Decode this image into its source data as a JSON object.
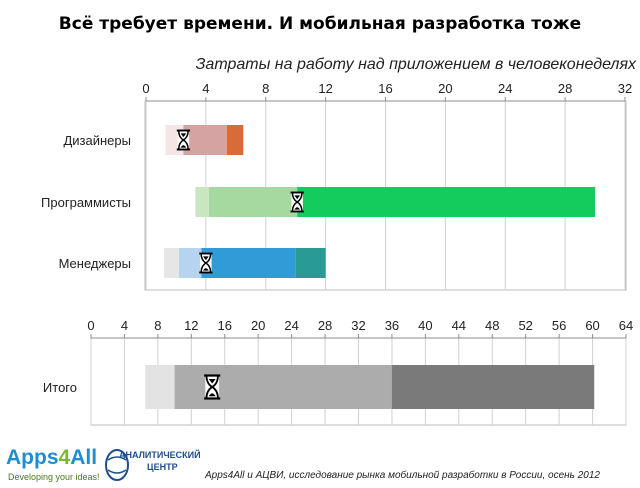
{
  "title": "Всё требует времени. И мобильная разработка тоже",
  "subtitle": "Затраты на работу над приложением в человеконеделях",
  "logo": {
    "word_main": "Apps",
    "word_digit": "4",
    "word_end": "All",
    "tagline": "Developing your ideas!"
  },
  "center_logo": {
    "line1": "АНАЛИТИЧЕСКИЙ",
    "line2": "ЦЕНТР"
  },
  "source": "Apps4All и АЦВИ, исследование рынка мобильной разработки в России, осень 2012",
  "colors": {
    "grid": "#d0d0d0",
    "axis": "#8c8c8c",
    "frame": "#bdbdbd"
  },
  "chart_data": [
    {
      "type": "bar",
      "orientation": "horizontal",
      "stacked": true,
      "title": "",
      "xlim": [
        0,
        32
      ],
      "x_ticks": [
        0,
        4,
        8,
        12,
        16,
        20,
        24,
        28,
        32
      ],
      "categories": [
        "Дизайнеры",
        "Программисты",
        "Менеджеры"
      ],
      "bars": [
        {
          "category": "Дизайнеры",
          "segments": [
            {
              "start": 1.3,
              "end": 2.5,
              "color": "#f3e6e4"
            },
            {
              "start": 2.5,
              "end": 5.4,
              "color": "#d5a4a2"
            },
            {
              "start": 5.4,
              "end": 6.5,
              "color": "#d96b38"
            }
          ],
          "marker": 2.5
        },
        {
          "category": "Программисты",
          "segments": [
            {
              "start": 3.3,
              "end": 4.2,
              "color": "#c8e7c0"
            },
            {
              "start": 4.2,
              "end": 10.1,
              "color": "#a6d9a0"
            },
            {
              "start": 10.1,
              "end": 30.0,
              "color": "#14cc5e"
            }
          ],
          "marker": 10.1
        },
        {
          "category": "Менеджеры",
          "segments": [
            {
              "start": 1.2,
              "end": 2.2,
              "color": "#e6e6e6"
            },
            {
              "start": 2.2,
              "end": 3.7,
              "color": "#b6d4f0"
            },
            {
              "start": 3.7,
              "end": 10.0,
              "color": "#2f9cd8"
            },
            {
              "start": 10.0,
              "end": 12.0,
              "color": "#2a9a94"
            }
          ],
          "marker": 4.0
        }
      ]
    },
    {
      "type": "bar",
      "orientation": "horizontal",
      "stacked": true,
      "title": "",
      "xlim": [
        0,
        64
      ],
      "x_ticks": [
        0,
        4,
        8,
        12,
        16,
        20,
        24,
        28,
        32,
        36,
        40,
        44,
        48,
        52,
        56,
        60,
        64
      ],
      "categories": [
        "Итого"
      ],
      "bars": [
        {
          "category": "Итого",
          "segments": [
            {
              "start": 6.5,
              "end": 10.0,
              "color": "#e3e3e3"
            },
            {
              "start": 10.0,
              "end": 36.0,
              "color": "#acacac"
            },
            {
              "start": 36.0,
              "end": 60.2,
              "color": "#7a7a7a"
            }
          ],
          "marker": 14.5
        }
      ]
    }
  ]
}
